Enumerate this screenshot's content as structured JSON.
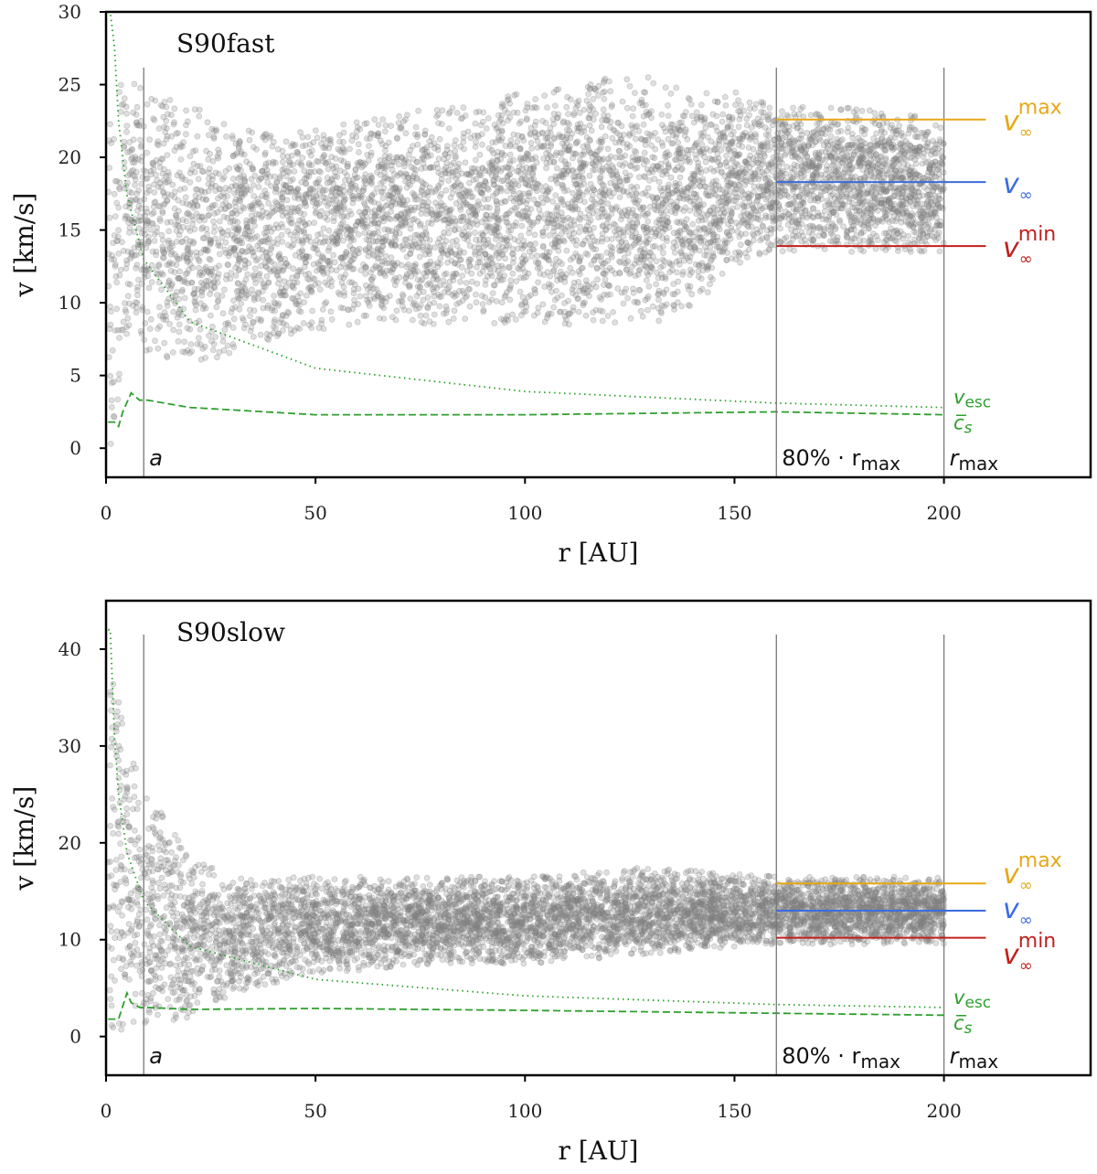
{
  "chart_data": [
    {
      "type": "scatter",
      "title": "S90fast",
      "xlabel": "r [AU]",
      "ylabel": "v [km/s]",
      "xlim": [
        0,
        235
      ],
      "ylim": [
        -2,
        30
      ],
      "xticks": [
        "0",
        "50",
        "100",
        "150",
        "200"
      ],
      "xtick_values": [
        0,
        50,
        100,
        150,
        200
      ],
      "yticks": [
        "0",
        "5",
        "10",
        "15",
        "20",
        "25",
        "30"
      ],
      "ytick_values": [
        0,
        5,
        10,
        15,
        20,
        25,
        30
      ],
      "scatter_envelope": {
        "r": [
          1,
          5,
          10,
          20,
          40,
          60,
          80,
          100,
          120,
          130,
          140,
          150,
          160,
          180,
          200
        ],
        "v_low": [
          0,
          8,
          7,
          6,
          8,
          9,
          9,
          9,
          9,
          9,
          10,
          13,
          14,
          14,
          14
        ],
        "v_high": [
          24,
          25,
          24,
          23,
          21,
          22,
          23,
          24,
          25,
          25,
          24,
          24,
          23,
          23,
          22
        ]
      },
      "v_esc": {
        "r": [
          1,
          2,
          3,
          5,
          9,
          20,
          50,
          100,
          160,
          200
        ],
        "v": [
          30,
          27.6,
          22.5,
          17.4,
          13,
          8.7,
          5.5,
          3.9,
          3.1,
          2.8
        ]
      },
      "c_s": {
        "r": [
          0,
          2,
          3,
          4,
          6,
          8,
          10,
          20,
          50,
          100,
          160,
          200
        ],
        "v": [
          1.8,
          1.8,
          1.5,
          2.5,
          3.8,
          3.3,
          3.3,
          2.8,
          2.3,
          2.3,
          2.5,
          2.3
        ]
      },
      "vertical_lines": [
        {
          "r": 9,
          "label": "a"
        },
        {
          "r": 160,
          "label": "80% · r",
          "sub": "max"
        },
        {
          "r": 200,
          "label": "r",
          "sub": "max"
        }
      ],
      "hlines": [
        {
          "name": "v∞ max",
          "v": 22.6,
          "label": "v",
          "sub": "∞",
          "sup": "max",
          "color": "#e6a817"
        },
        {
          "name": "v∞",
          "v": 18.3,
          "label": "v",
          "sub": "∞",
          "sup": "",
          "color": "#3c6be0"
        },
        {
          "name": "v∞ min",
          "v": 13.9,
          "label": "v",
          "sub": "∞",
          "sup": "min",
          "color": "#c0201c"
        }
      ],
      "curve_labels": {
        "v_esc": "v",
        "v_esc_sub": "esc",
        "c_s": "c̅",
        "c_s_sub": "s"
      }
    },
    {
      "type": "scatter",
      "title": "S90slow",
      "xlabel": "r [AU]",
      "ylabel": "v [km/s]",
      "xlim": [
        0,
        235
      ],
      "ylim": [
        -4,
        45
      ],
      "xticks": [
        "0",
        "50",
        "100",
        "150",
        "200"
      ],
      "xtick_values": [
        0,
        50,
        100,
        150,
        200
      ],
      "yticks": [
        "0",
        "10",
        "20",
        "30",
        "40"
      ],
      "ytick_values": [
        0,
        10,
        20,
        30,
        40
      ],
      "scatter_envelope": {
        "r": [
          2,
          5,
          10,
          20,
          30,
          50,
          80,
          100,
          130,
          160,
          200
        ],
        "v_low": [
          0,
          1,
          1,
          2,
          5,
          7,
          8,
          8,
          9,
          10,
          10
        ],
        "v_high": [
          41,
          30,
          25,
          18,
          16,
          16,
          16,
          16,
          17,
          16,
          16
        ]
      },
      "v_esc": {
        "r": [
          1,
          2,
          3,
          5,
          9,
          20,
          50,
          100,
          160,
          200
        ],
        "v": [
          42,
          31,
          25,
          19,
          14,
          9.3,
          5.9,
          4.2,
          3.3,
          3.0
        ]
      },
      "c_s": {
        "r": [
          0,
          3,
          5,
          6,
          8,
          10,
          20,
          50,
          100,
          160,
          200
        ],
        "v": [
          1.8,
          1.8,
          4.5,
          3.5,
          3.0,
          3.0,
          2.8,
          2.9,
          2.7,
          2.4,
          2.2
        ]
      },
      "vertical_lines": [
        {
          "r": 9,
          "label": "a"
        },
        {
          "r": 160,
          "label": "80% · r",
          "sub": "max"
        },
        {
          "r": 200,
          "label": "r",
          "sub": "max"
        }
      ],
      "hlines": [
        {
          "name": "v∞ max",
          "v": 15.8,
          "label": "v",
          "sub": "∞",
          "sup": "max",
          "color": "#e6a817"
        },
        {
          "name": "v∞",
          "v": 13.0,
          "label": "v",
          "sub": "∞",
          "sup": "",
          "color": "#3c6be0"
        },
        {
          "name": "v∞ min",
          "v": 10.2,
          "label": "v",
          "sub": "∞",
          "sup": "min",
          "color": "#c0201c"
        }
      ],
      "curve_labels": {
        "v_esc": "v",
        "v_esc_sub": "esc",
        "c_s": "c̅",
        "c_s_sub": "s"
      }
    }
  ],
  "colors": {
    "scatter": "#808080",
    "curves": "#2ca02c"
  }
}
